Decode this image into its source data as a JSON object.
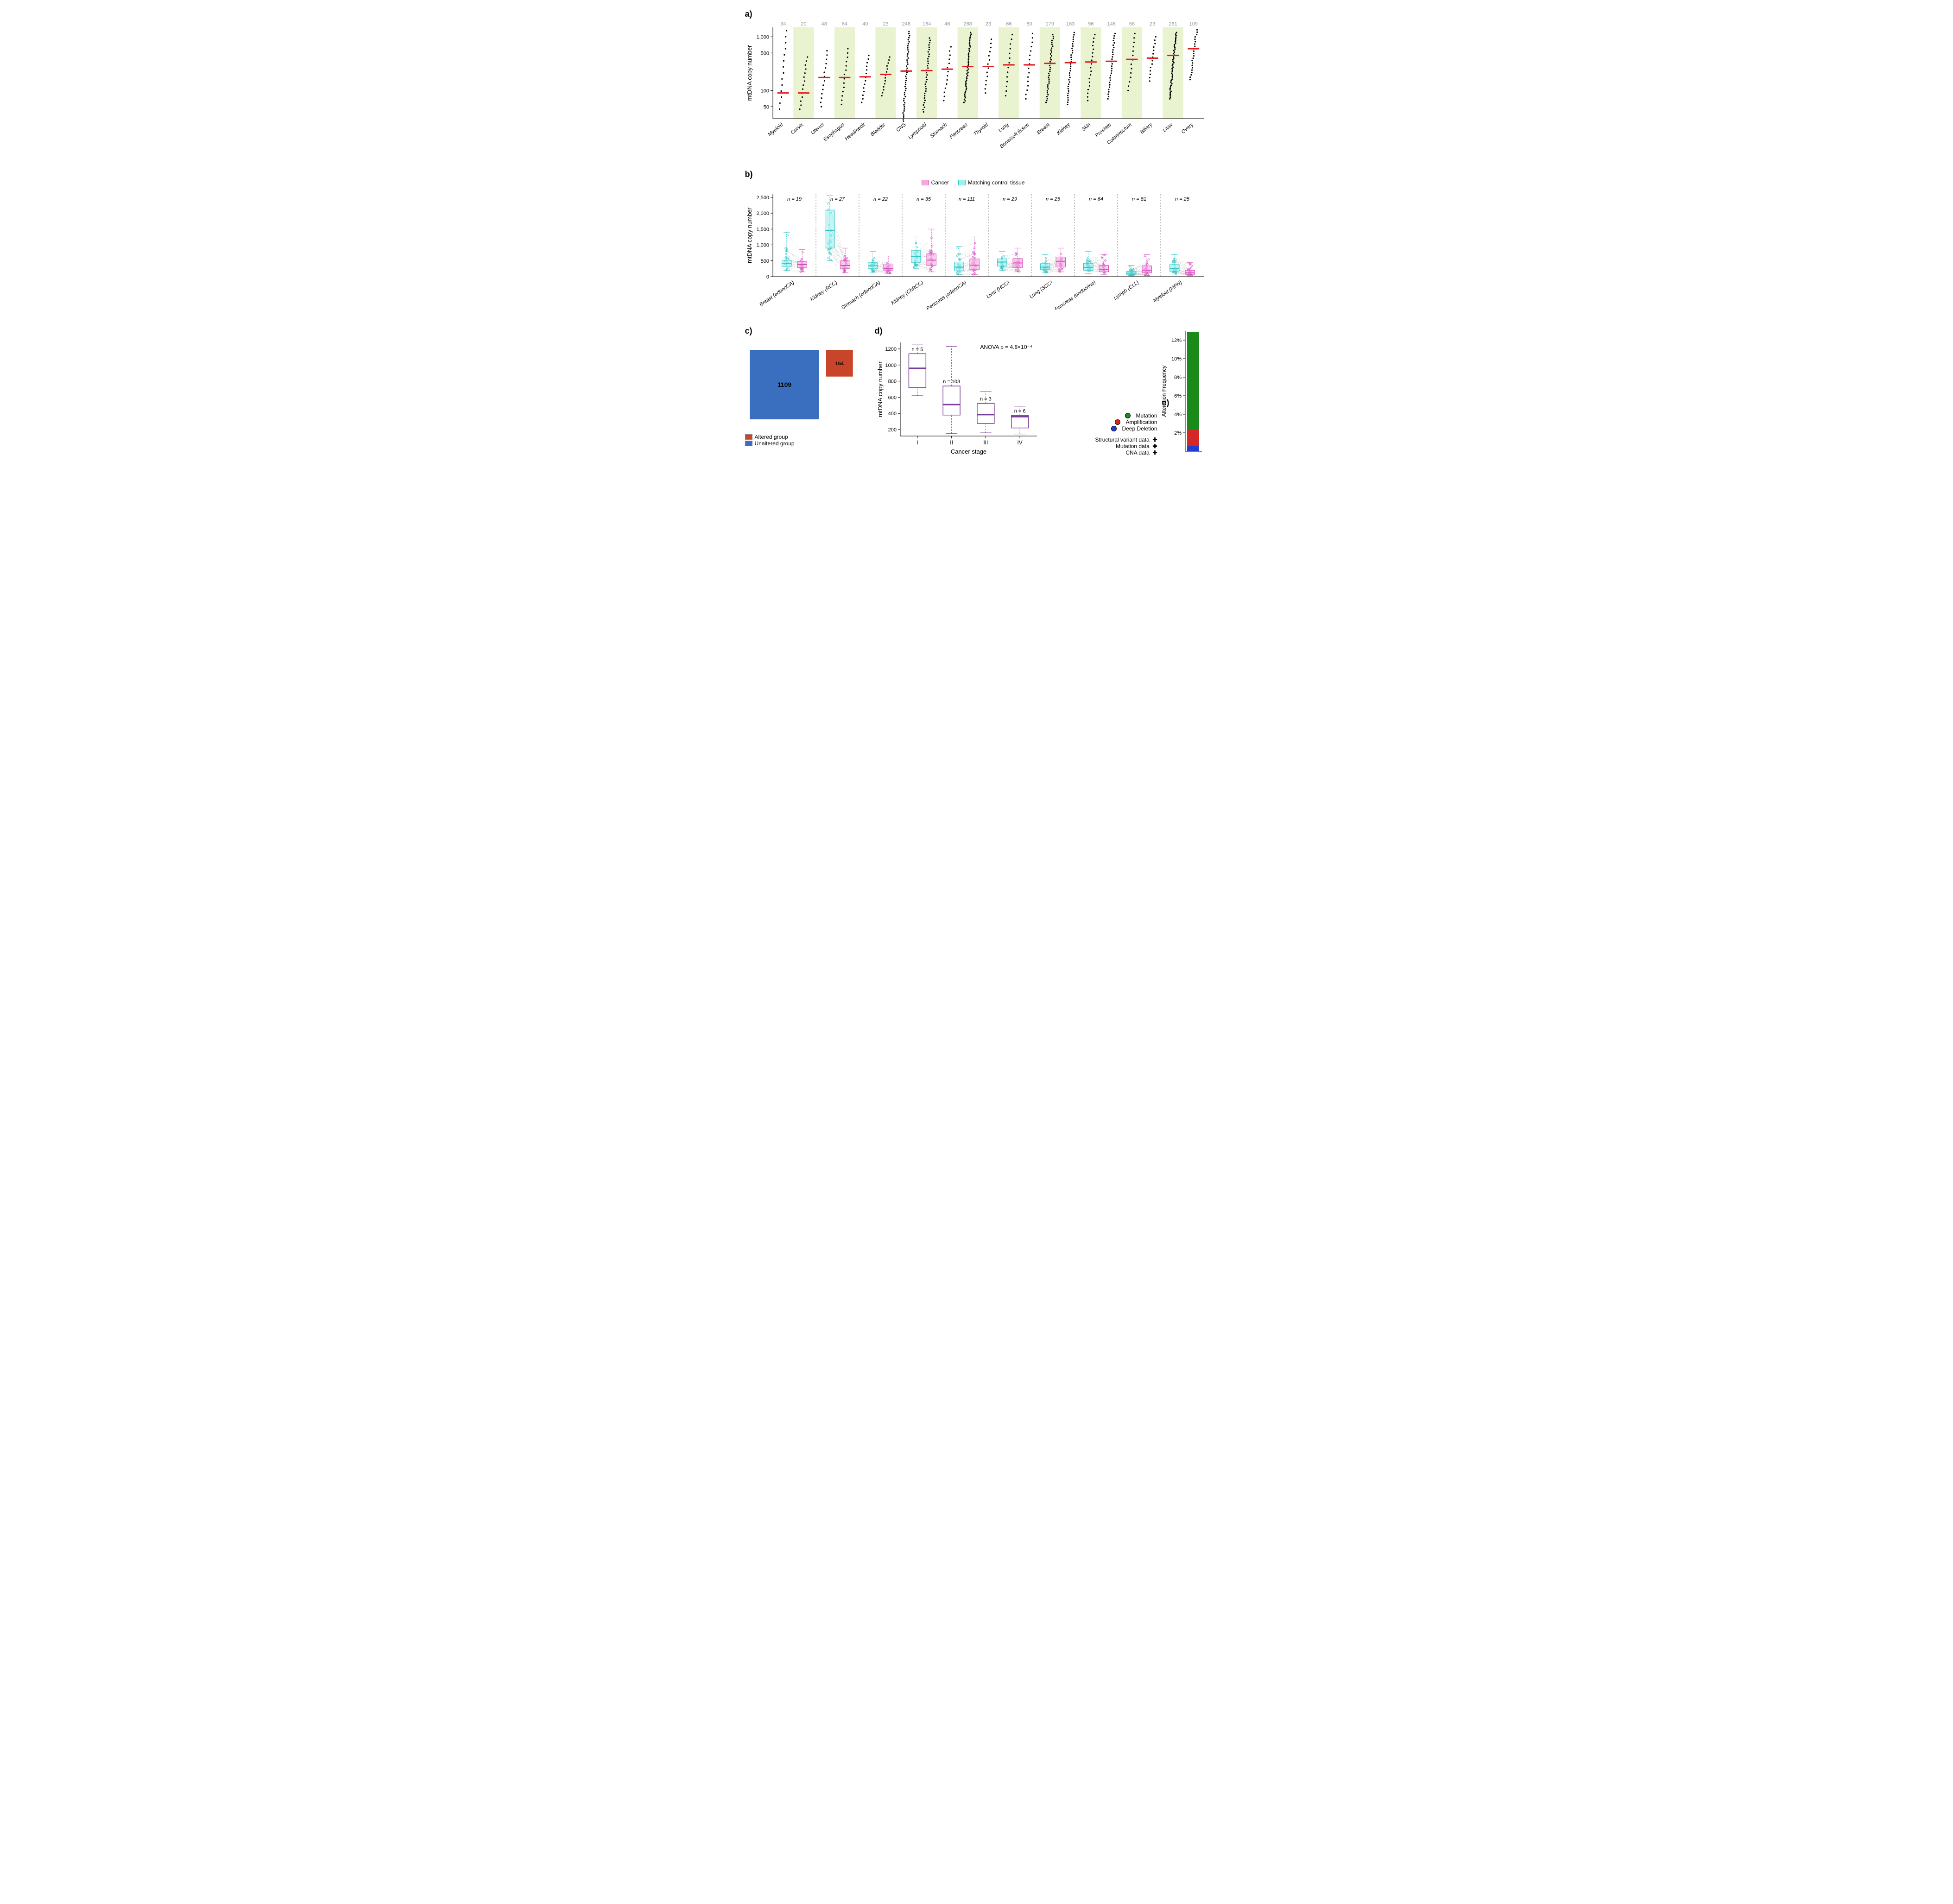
{
  "colors": {
    "shade": "#eaf3d0",
    "median": "#e41a1c",
    "point": "#000000",
    "cancer": "#f5a9e1",
    "cancer_border": "#d94fc1",
    "control": "#9ef0f0",
    "control_border": "#2ec4c4",
    "altered": "#c9452a",
    "unaltered": "#3a6fbf",
    "box_d": "#7d3c98",
    "mutation": "#1a8a1a",
    "amplification": "#d62728",
    "deep_deletion": "#1f3fd1",
    "grid": "#cccccc"
  },
  "panel_a": {
    "label": "a)",
    "ylabel": "mtDNA copy number",
    "yticks": [
      50,
      100,
      500,
      1000
    ],
    "ytick_labels": [
      "50",
      "100",
      "500",
      "1,000"
    ],
    "ylim": [
      30,
      1500
    ],
    "categories": [
      {
        "name": "Myeloid",
        "n": 34,
        "median": 90,
        "lo": 45,
        "hi": 1300
      },
      {
        "name": "Cervix",
        "n": 20,
        "median": 90,
        "lo": 45,
        "hi": 420
      },
      {
        "name": "Uterus",
        "n": 48,
        "median": 175,
        "lo": 50,
        "hi": 550
      },
      {
        "name": "Esophagus",
        "n": 64,
        "median": 175,
        "lo": 55,
        "hi": 600
      },
      {
        "name": "Head/neck",
        "n": 40,
        "median": 180,
        "lo": 60,
        "hi": 450
      },
      {
        "name": "Bladder",
        "n": 23,
        "median": 200,
        "lo": 80,
        "hi": 420
      },
      {
        "name": "CNS",
        "n": 246,
        "median": 230,
        "lo": 27,
        "hi": 1250
      },
      {
        "name": "Lymphoid",
        "n": 164,
        "median": 235,
        "lo": 40,
        "hi": 950
      },
      {
        "name": "Stomach",
        "n": 46,
        "median": 250,
        "lo": 65,
        "hi": 650
      },
      {
        "name": "Pancreas",
        "n": 268,
        "median": 280,
        "lo": 60,
        "hi": 1200
      },
      {
        "name": "Thyroid",
        "n": 23,
        "median": 280,
        "lo": 90,
        "hi": 900
      },
      {
        "name": "Lung",
        "n": 66,
        "median": 300,
        "lo": 80,
        "hi": 1100
      },
      {
        "name": "Bone/soft tissue",
        "n": 80,
        "median": 300,
        "lo": 70,
        "hi": 1150
      },
      {
        "name": "Breast",
        "n": 179,
        "median": 320,
        "lo": 60,
        "hi": 1100
      },
      {
        "name": "Kidney",
        "n": 163,
        "median": 330,
        "lo": 55,
        "hi": 1200
      },
      {
        "name": "Skin",
        "n": 96,
        "median": 340,
        "lo": 65,
        "hi": 1100
      },
      {
        "name": "Prostate",
        "n": 146,
        "median": 350,
        "lo": 70,
        "hi": 1150
      },
      {
        "name": "Colon/rectum",
        "n": 58,
        "median": 380,
        "lo": 100,
        "hi": 1150
      },
      {
        "name": "Biliary",
        "n": 23,
        "median": 400,
        "lo": 150,
        "hi": 1000
      },
      {
        "name": "Liver",
        "n": 261,
        "median": 450,
        "lo": 70,
        "hi": 1200
      },
      {
        "name": "Ovary",
        "n": 109,
        "median": 600,
        "lo": 160,
        "hi": 1350
      }
    ]
  },
  "panel_b": {
    "label": "b)",
    "ylabel": "mtDNA copy number",
    "yticks": [
      0,
      500,
      1000,
      1500,
      2000,
      2500
    ],
    "ytick_labels": [
      "0",
      "500",
      "1,000",
      "1,500",
      "2,000",
      "2,500"
    ],
    "ylim": [
      0,
      2600
    ],
    "legend": [
      {
        "label": "Cancer",
        "color_key": "cancer"
      },
      {
        "label": "Matching control tissue",
        "color_key": "control"
      }
    ],
    "categories": [
      {
        "name": "Breast (adenoCA)",
        "n": 19,
        "cancer": {
          "q1": 280,
          "med": 380,
          "q3": 480,
          "lo": 150,
          "hi": 850
        },
        "control": {
          "q1": 320,
          "med": 420,
          "q3": 500,
          "lo": 200,
          "hi": 1400
        }
      },
      {
        "name": "Kidney (RCC)",
        "n": 27,
        "cancer": {
          "q1": 250,
          "med": 350,
          "q3": 500,
          "lo": 120,
          "hi": 900
        },
        "control": {
          "q1": 900,
          "med": 1450,
          "q3": 2100,
          "lo": 500,
          "hi": 2550
        }
      },
      {
        "name": "Stomach (adenoCA)",
        "n": 22,
        "cancer": {
          "q1": 200,
          "med": 260,
          "q3": 400,
          "lo": 100,
          "hi": 650
        },
        "control": {
          "q1": 250,
          "med": 340,
          "q3": 440,
          "lo": 140,
          "hi": 800
        }
      },
      {
        "name": "Kidney (ChRCC)",
        "n": 35,
        "cancer": {
          "q1": 350,
          "med": 520,
          "q3": 720,
          "lo": 150,
          "hi": 1500
        },
        "control": {
          "q1": 450,
          "med": 640,
          "q3": 830,
          "lo": 250,
          "hi": 1250
        }
      },
      {
        "name": "Pancreas (adenoCA)",
        "n": 111,
        "cancer": {
          "q1": 220,
          "med": 360,
          "q3": 560,
          "lo": 60,
          "hi": 1250
        },
        "control": {
          "q1": 180,
          "med": 300,
          "q3": 460,
          "lo": 60,
          "hi": 950
        }
      },
      {
        "name": "Liver (HCC)",
        "n": 29,
        "cancer": {
          "q1": 280,
          "med": 430,
          "q3": 570,
          "lo": 150,
          "hi": 900
        },
        "control": {
          "q1": 330,
          "med": 460,
          "q3": 560,
          "lo": 200,
          "hi": 800
        }
      },
      {
        "name": "Lung (SCC)",
        "n": 25,
        "cancer": {
          "q1": 300,
          "med": 470,
          "q3": 620,
          "lo": 150,
          "hi": 900
        },
        "control": {
          "q1": 220,
          "med": 300,
          "q3": 410,
          "lo": 120,
          "hi": 700
        }
      },
      {
        "name": "Pancreas (endocrine)",
        "n": 64,
        "cancer": {
          "q1": 150,
          "med": 230,
          "q3": 360,
          "lo": 60,
          "hi": 700
        },
        "control": {
          "q1": 200,
          "med": 290,
          "q3": 420,
          "lo": 90,
          "hi": 800
        }
      },
      {
        "name": "Lymph (CLL)",
        "n": 81,
        "cancer": {
          "q1": 120,
          "med": 200,
          "q3": 340,
          "lo": 40,
          "hi": 700
        },
        "control": {
          "q1": 70,
          "med": 110,
          "q3": 170,
          "lo": 40,
          "hi": 350
        }
      },
      {
        "name": "Myeloid (MPN)",
        "n": 25,
        "cancer": {
          "q1": 70,
          "med": 120,
          "q3": 200,
          "lo": 40,
          "hi": 450
        },
        "control": {
          "q1": 170,
          "med": 250,
          "q3": 380,
          "lo": 80,
          "hi": 700
        }
      }
    ]
  },
  "panel_c": {
    "label": "c)",
    "unaltered": {
      "value": 1109,
      "label": "Unaltered group"
    },
    "altered": {
      "value": 164,
      "label": "Altered group"
    }
  },
  "panel_d": {
    "label": "d)",
    "xlabel": "Cancer stage",
    "ylabel": "mtDNA copy number",
    "anova": "ANOVA p =  4.8×10⁻⁴",
    "yticks": [
      200,
      400,
      600,
      800,
      1000,
      1200
    ],
    "ylim": [
      120,
      1280
    ],
    "boxes": [
      {
        "stage": "I",
        "n": 5,
        "q1": 720,
        "med": 960,
        "q3": 1140,
        "lo": 620,
        "hi": 1250
      },
      {
        "stage": "II",
        "n": 103,
        "q1": 380,
        "med": 510,
        "q3": 740,
        "lo": 150,
        "hi": 1230
      },
      {
        "stage": "III",
        "n": 3,
        "q1": 275,
        "med": 385,
        "q3": 525,
        "lo": 160,
        "hi": 670
      },
      {
        "stage": "IV",
        "n": 6,
        "q1": 220,
        "med": 360,
        "q3": 375,
        "lo": 145,
        "hi": 490
      }
    ]
  },
  "panel_e": {
    "label": "e)",
    "ylabel": "Alteration Frequency",
    "yticks": [
      "2%",
      "4%",
      "6%",
      "8%",
      "10%",
      "12%"
    ],
    "ymax": 13,
    "segments": [
      {
        "key": "deep_deletion",
        "value": 0.6
      },
      {
        "key": "amplification",
        "value": 1.7
      },
      {
        "key": "mutation",
        "value": 10.6
      }
    ],
    "legend": [
      {
        "label": "Mutation",
        "key": "mutation"
      },
      {
        "label": "Amplification",
        "key": "amplification"
      },
      {
        "label": "Deep Deletion",
        "key": "deep_deletion"
      }
    ],
    "data_rows": [
      {
        "label": "Structural variant data",
        "plus": true
      },
      {
        "label": "Mutation data",
        "plus": true
      },
      {
        "label": "CNA data",
        "plus": true
      }
    ]
  }
}
